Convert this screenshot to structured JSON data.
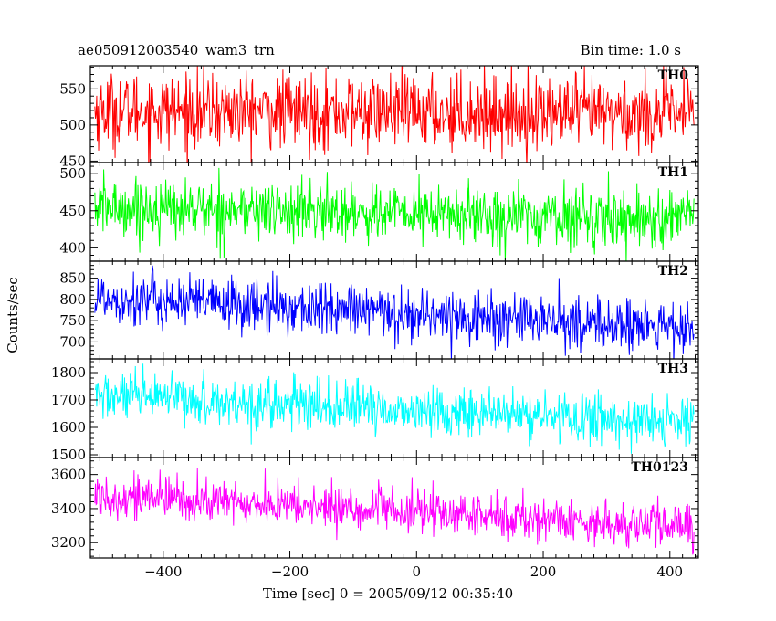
{
  "chart_data": {
    "type": "line",
    "title": "ae050912003540_wam3_trn",
    "subtitle": "Bin time: 1.0 s",
    "xlabel": "Time [sec] 0 = 2005/09/12 00:35:40",
    "ylabel": "Counts/sec",
    "xlim": [
      -515,
      445
    ],
    "x_ticks": [
      -400,
      -200,
      0,
      200,
      400
    ],
    "x_tick_labels": [
      "−400",
      "−200",
      "0",
      "200",
      "400"
    ],
    "x_range": [
      -508,
      438
    ],
    "bin_time": 1.0,
    "grid": false,
    "legend": "none",
    "series": [
      {
        "name": "TH0",
        "color": "#ff0000",
        "ylim": [
          448,
          582
        ],
        "yticks": [
          450,
          500,
          550
        ],
        "trend_start": 520,
        "trend_end": 515,
        "noise_std": 26
      },
      {
        "name": "TH1",
        "color": "#00ff00",
        "ylim": [
          382,
          515
        ],
        "yticks": [
          400,
          450,
          500
        ],
        "trend_start": 455,
        "trend_end": 438,
        "noise_std": 20
      },
      {
        "name": "TH2",
        "color": "#0000ff",
        "ylim": [
          660,
          890
        ],
        "yticks": [
          700,
          750,
          800,
          850
        ],
        "trend_start": 805,
        "trend_end": 730,
        "noise_std": 32
      },
      {
        "name": "TH3",
        "color": "#00ffff",
        "ylim": [
          1490,
          1850
        ],
        "yticks": [
          1500,
          1600,
          1700,
          1800
        ],
        "trend_start": 1715,
        "trend_end": 1615,
        "noise_std": 45
      },
      {
        "name": "TH0123",
        "color": "#ff00ff",
        "ylim": [
          3110,
          3700
        ],
        "yticks": [
          3200,
          3400,
          3600
        ],
        "trend_start": 3480,
        "trend_end": 3290,
        "noise_std": 65
      }
    ]
  }
}
